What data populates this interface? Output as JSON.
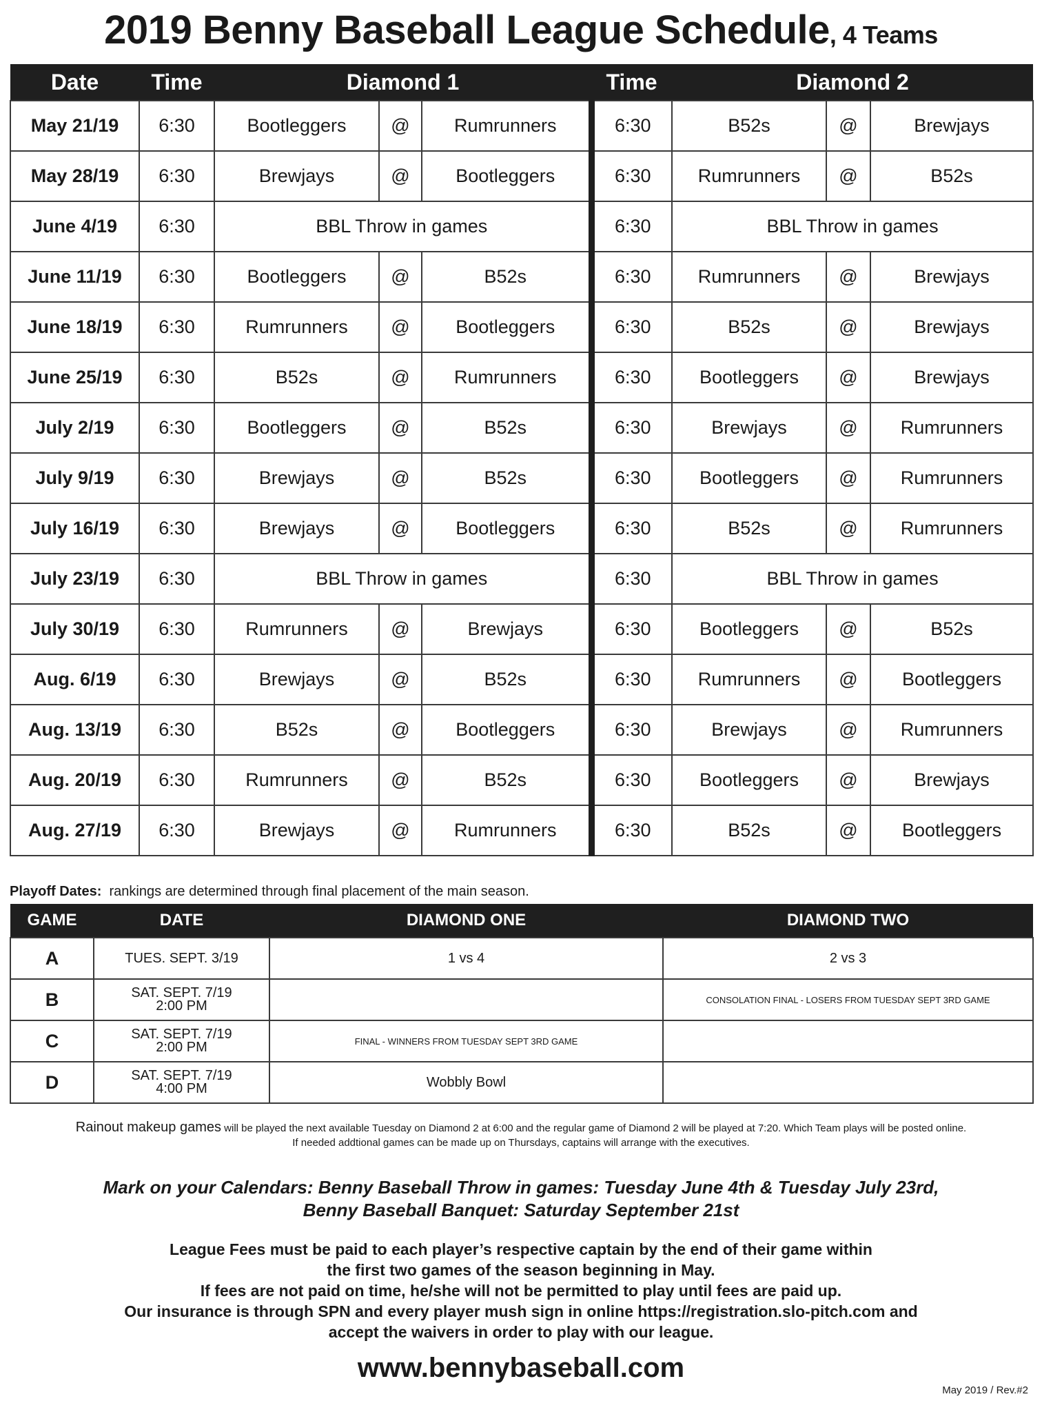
{
  "title": {
    "main": "2019 Benny Baseball League Schedule",
    "suffix": ", 4 Teams"
  },
  "schedule": {
    "headers": {
      "date": "Date",
      "time1": "Time",
      "diamond1": "Diamond 1",
      "time2": "Time",
      "diamond2": "Diamond 2"
    },
    "at": "@",
    "rows": [
      {
        "date": "May 21/19",
        "d1": {
          "time": "6:30",
          "home": "Bootleggers",
          "away": "Rumrunners"
        },
        "d2": {
          "time": "6:30",
          "home": "B52s",
          "away": "Brewjays"
        }
      },
      {
        "date": "May 28/19",
        "d1": {
          "time": "6:30",
          "home": "Brewjays",
          "away": "Bootleggers"
        },
        "d2": {
          "time": "6:30",
          "home": "Rumrunners",
          "away": "B52s"
        }
      },
      {
        "date": "June 4/19",
        "d1": {
          "time": "6:30",
          "event": "BBL Throw in games"
        },
        "d2": {
          "time": "6:30",
          "event": "BBL Throw in games"
        }
      },
      {
        "date": "June 11/19",
        "d1": {
          "time": "6:30",
          "home": "Bootleggers",
          "away": "B52s"
        },
        "d2": {
          "time": "6:30",
          "home": "Rumrunners",
          "away": "Brewjays"
        }
      },
      {
        "date": "June 18/19",
        "d1": {
          "time": "6:30",
          "home": "Rumrunners",
          "away": "Bootleggers"
        },
        "d2": {
          "time": "6:30",
          "home": "B52s",
          "away": "Brewjays"
        }
      },
      {
        "date": "June 25/19",
        "d1": {
          "time": "6:30",
          "home": "B52s",
          "away": "Rumrunners"
        },
        "d2": {
          "time": "6:30",
          "home": "Bootleggers",
          "away": "Brewjays"
        }
      },
      {
        "date": "July 2/19",
        "d1": {
          "time": "6:30",
          "home": "Bootleggers",
          "away": "B52s"
        },
        "d2": {
          "time": "6:30",
          "home": "Brewjays",
          "away": "Rumrunners"
        }
      },
      {
        "date": "July 9/19",
        "d1": {
          "time": "6:30",
          "home": "Brewjays",
          "away": "B52s"
        },
        "d2": {
          "time": "6:30",
          "home": "Bootleggers",
          "away": "Rumrunners"
        }
      },
      {
        "date": "July 16/19",
        "d1": {
          "time": "6:30",
          "home": "Brewjays",
          "away": "Bootleggers"
        },
        "d2": {
          "time": "6:30",
          "home": "B52s",
          "away": "Rumrunners"
        }
      },
      {
        "date": "July 23/19",
        "d1": {
          "time": "6:30",
          "event": "BBL Throw in games"
        },
        "d2": {
          "time": "6:30",
          "event": "BBL Throw in games"
        }
      },
      {
        "date": "July 30/19",
        "d1": {
          "time": "6:30",
          "home": "Rumrunners",
          "away": "Brewjays"
        },
        "d2": {
          "time": "6:30",
          "home": "Bootleggers",
          "away": "B52s"
        }
      },
      {
        "date": "Aug. 6/19",
        "d1": {
          "time": "6:30",
          "home": "Brewjays",
          "away": "B52s"
        },
        "d2": {
          "time": "6:30",
          "home": "Rumrunners",
          "away": "Bootleggers"
        }
      },
      {
        "date": "Aug. 13/19",
        "d1": {
          "time": "6:30",
          "home": "B52s",
          "away": "Bootleggers"
        },
        "d2": {
          "time": "6:30",
          "home": "Brewjays",
          "away": "Rumrunners"
        }
      },
      {
        "date": "Aug. 20/19",
        "d1": {
          "time": "6:30",
          "home": "Rumrunners",
          "away": "B52s"
        },
        "d2": {
          "time": "6:30",
          "home": "Bootleggers",
          "away": "Brewjays"
        }
      },
      {
        "date": "Aug. 27/19",
        "d1": {
          "time": "6:30",
          "home": "Brewjays",
          "away": "Rumrunners"
        },
        "d2": {
          "time": "6:30",
          "home": "B52s",
          "away": "Bootleggers"
        }
      }
    ]
  },
  "playoffs": {
    "label": "Playoff Dates:",
    "note": "rankings are determined through final placement of the main season.",
    "headers": {
      "game": "GAME",
      "date": "DATE",
      "d1": "DIAMOND ONE",
      "d2": "DIAMOND TWO"
    },
    "rows": [
      {
        "game": "A",
        "date": "TUES. SEPT. 3/19",
        "time": "",
        "d1": "1 vs 4",
        "d2": "2 vs 3"
      },
      {
        "game": "B",
        "date": "SAT. SEPT. 7/19",
        "time": "2:00 PM",
        "d1": "",
        "d2": "CONSOLATION FINAL  - LOSERS FROM TUESDAY SEPT 3RD GAME"
      },
      {
        "game": "C",
        "date": "SAT. SEPT. 7/19",
        "time": "2:00 PM",
        "d1": "FINAL - WINNERS FROM TUESDAY SEPT 3RD GAME",
        "d2": ""
      },
      {
        "game": "D",
        "date": "SAT. SEPT. 7/19",
        "time": "4:00 PM",
        "d1": "Wobbly Bowl",
        "d2": ""
      }
    ]
  },
  "rainout": {
    "lead": "Rainout makeup games",
    "line1": " will be played the next available Tuesday on Diamond 2 at 6:00 and the regular game of Diamond 2 will be played at 7:20. Which Team plays will be posted online.",
    "line2": "If needed addtional games can be made up on Thursdays, captains will arrange with the executives."
  },
  "calendar": {
    "line1": "Mark on your Calendars:  Benny Baseball Throw in games: Tuesday June 4th & Tuesday July 23rd,",
    "line2": "Benny Baseball Banquet: Saturday September 21st"
  },
  "fees": [
    "League Fees must be paid to each player’s respective captain by the end of their game within",
    "the first two games of the season beginning in May.",
    "If fees are not paid on time, he/she will not be permitted to play until fees are paid up.",
    "Our insurance is through SPN and every player mush sign in online https://registration.slo-pitch.com and",
    "accept the waivers in order to play with our league."
  ],
  "website": "www.bennybaseball.com",
  "revision": "May 2019 / Rev.#2"
}
